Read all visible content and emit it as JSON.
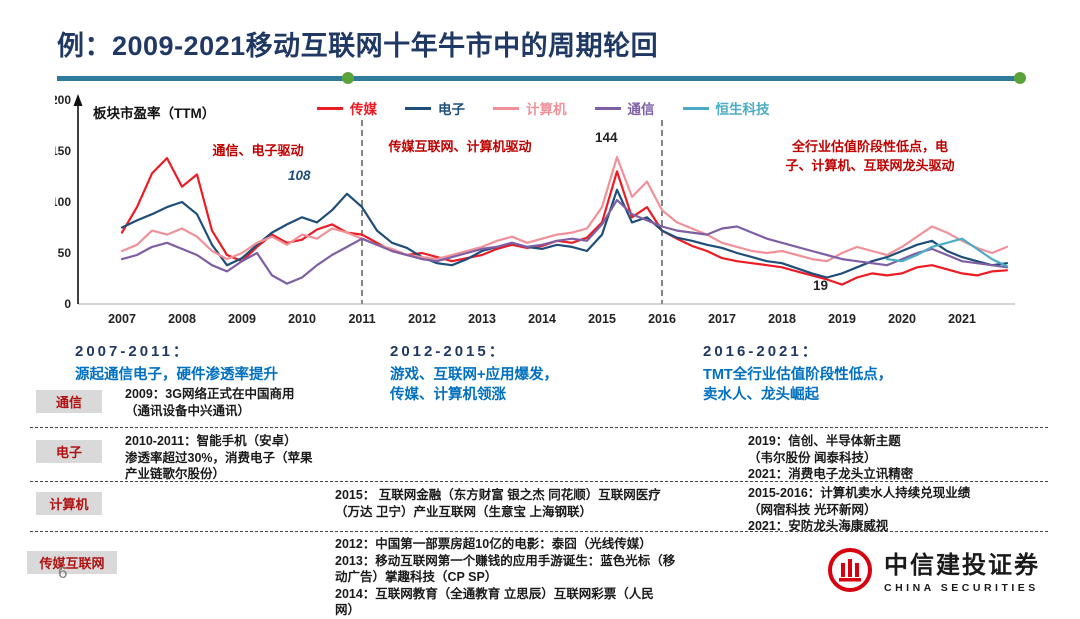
{
  "slide": {
    "title": "例：2009-2021移动互联网十年牛市中的周期轮回",
    "page_number": "6"
  },
  "chart_data": {
    "type": "line",
    "title": "板块市盈率（TTM）",
    "xlabel": "",
    "ylabel": "",
    "ylim": [
      0,
      200
    ],
    "yticks": [
      0,
      50,
      100,
      150,
      200
    ],
    "xticks": [
      2007,
      2008,
      2009,
      2010,
      2011,
      2012,
      2013,
      2014,
      2015,
      2016,
      2017,
      2018,
      2019,
      2020,
      2021
    ],
    "grid": false,
    "legend_position": "top",
    "dashed_vlines": [
      2011,
      2016
    ],
    "x_step": 0.25,
    "series": [
      {
        "name": "传媒",
        "color": "#eb1c24",
        "x_start": 2007,
        "values": [
          70,
          95,
          128,
          143,
          115,
          127,
          72,
          48,
          42,
          56,
          68,
          60,
          63,
          73,
          78,
          70,
          68,
          60,
          52,
          48,
          50,
          46,
          42,
          45,
          48,
          54,
          58,
          55,
          57,
          62,
          60,
          65,
          80,
          130,
          85,
          95,
          72,
          64,
          57,
          52,
          45,
          42,
          40,
          38,
          36,
          32,
          28,
          24,
          19,
          26,
          30,
          28,
          30,
          36,
          38,
          34,
          30,
          28,
          32,
          33
        ]
      },
      {
        "name": "电子",
        "color": "#1f4e79",
        "x_start": 2007,
        "values": [
          75,
          82,
          88,
          95,
          100,
          88,
          58,
          38,
          45,
          58,
          70,
          78,
          85,
          80,
          92,
          108,
          95,
          72,
          60,
          55,
          46,
          40,
          38,
          44,
          52,
          56,
          60,
          56,
          54,
          58,
          56,
          52,
          68,
          112,
          80,
          85,
          72,
          65,
          62,
          58,
          55,
          50,
          46,
          42,
          40,
          35,
          30,
          26,
          30,
          36,
          42,
          46,
          52,
          58,
          62,
          52,
          46,
          42,
          38,
          40
        ]
      },
      {
        "name": "计算机",
        "color": "#f09199",
        "x_start": 2007,
        "values": [
          52,
          58,
          72,
          68,
          74,
          66,
          52,
          44,
          50,
          60,
          66,
          58,
          68,
          64,
          74,
          70,
          64,
          58,
          54,
          48,
          46,
          44,
          48,
          52,
          56,
          62,
          66,
          60,
          64,
          68,
          70,
          74,
          95,
          144,
          105,
          120,
          92,
          80,
          74,
          68,
          60,
          56,
          52,
          50,
          52,
          48,
          44,
          42,
          50,
          56,
          52,
          48,
          56,
          66,
          76,
          70,
          62,
          55,
          50,
          56
        ]
      },
      {
        "name": "通信",
        "color": "#7e5fa4",
        "x_start": 2007,
        "values": [
          44,
          48,
          56,
          60,
          54,
          48,
          38,
          32,
          42,
          50,
          28,
          20,
          26,
          38,
          48,
          56,
          64,
          58,
          52,
          48,
          44,
          42,
          46,
          50,
          54,
          56,
          60,
          56,
          58,
          62,
          64,
          62,
          78,
          102,
          88,
          82,
          76,
          72,
          70,
          68,
          74,
          76,
          70,
          64,
          60,
          56,
          52,
          48,
          44,
          42,
          40,
          38,
          44,
          50,
          54,
          48,
          42,
          40,
          38,
          36
        ]
      },
      {
        "name": "恒生科技",
        "color": "#4bacc6",
        "x_start": 2019.75,
        "values": [
          44,
          42,
          48,
          56,
          60,
          64,
          54,
          44,
          37
        ]
      }
    ],
    "annotations": [
      {
        "id": "phase-left",
        "text": "通信、电子驱动"
      },
      {
        "id": "phase-mid",
        "text": "传媒互联网、计算机驱动"
      },
      {
        "id": "phase-right",
        "text": "全行业估值阶段性低点，电\n子、计算机、互联网龙头驱动"
      },
      {
        "id": "peak-2010",
        "text": "108"
      },
      {
        "id": "peak-2015",
        "text": "144"
      },
      {
        "id": "low-2019",
        "text": "19"
      }
    ]
  },
  "periods": [
    {
      "heading": "2007-2011：",
      "body": "源起通信电子，硬件渗透率提升"
    },
    {
      "heading": "2012-2015：",
      "body": "游戏、互联网+应用爆发，\n传媒、计算机领涨"
    },
    {
      "heading": "2016-2021：",
      "body": "TMT全行业估值阶段性低点，\n卖水人、龙头崛起"
    }
  ],
  "timeline": {
    "rows": [
      {
        "label": "通信",
        "text_left": "2009：3G网络正式在中国商用\n（通讯设备中兴通讯）"
      },
      {
        "label": "电子",
        "text_left": "2010-2011：智能手机（安卓）\n渗透率超过30%，消费电子（苹果\n产业链歌尔股份）",
        "text_right": "2019：信创、半导体新主题\n（韦尔股份  闻泰科技）\n2021：消费电子龙头立讯精密"
      },
      {
        "label": "计算机",
        "text_center": "2015： 互联网金融（东方财富  银之杰  同花顺）互联网医疗\n（万达  卫宁）产业互联网（生意宝  上海钢联）",
        "text_right": "2015-2016：计算机卖水人持续兑现业绩\n（网宿科技  光环新网）\n2021：安防龙头海康威视"
      },
      {
        "label": "传媒互联网",
        "text_center": "2012：中国第一部票房超10亿的电影：泰囧（光线传媒）\n2013：移动互联网第一个赚钱的应用手游诞生：蓝色光标（移\n动广告）掌趣科技（CP SP）\n2014：互联网教育（全通教育  立思辰）互联网彩票（人民\n网）"
      }
    ]
  },
  "footer": {
    "brand": "中信建投证券",
    "brand_en": "CHINA SECURITIES",
    "brand_color": "#d7000f"
  }
}
